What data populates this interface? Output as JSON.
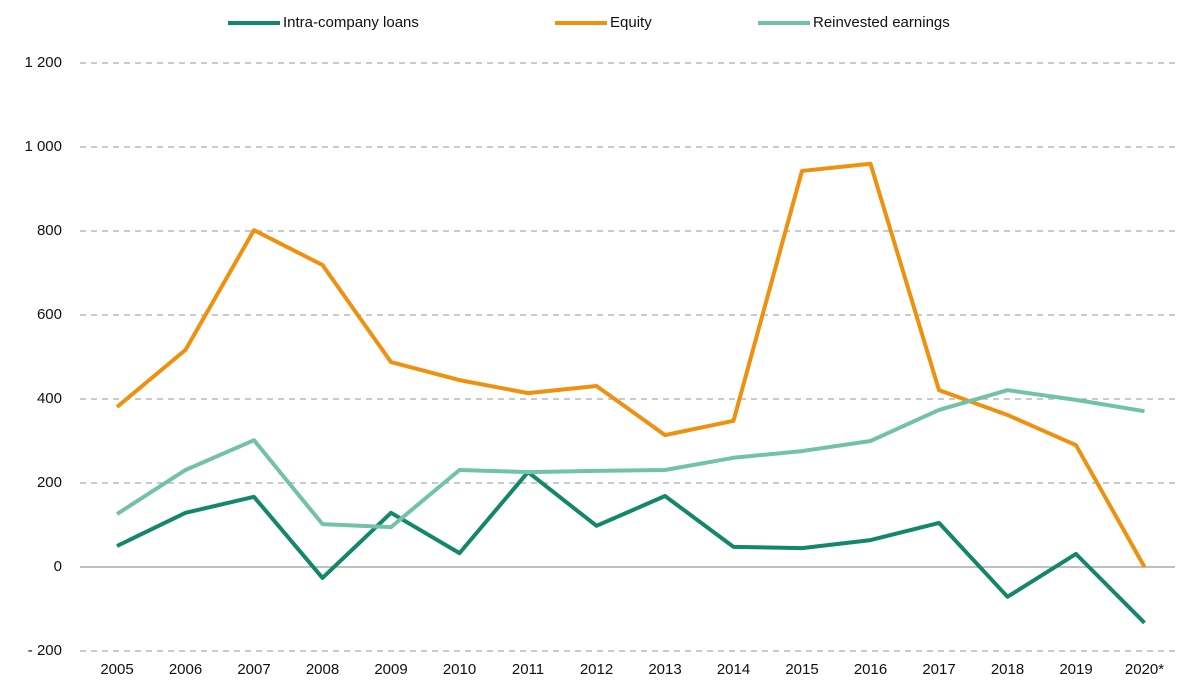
{
  "chart_data": {
    "type": "line",
    "categories": [
      "2005",
      "2006",
      "2007",
      "2008",
      "2009",
      "2010",
      "2011",
      "2012",
      "2013",
      "2014",
      "2015",
      "2016",
      "2017",
      "2018",
      "2019",
      "2020*"
    ],
    "series": [
      {
        "name": "Intra-company loans",
        "color": "#13876b",
        "values": [
          50,
          129,
          167,
          -26,
          129,
          33,
          226,
          98,
          169,
          48,
          45,
          64,
          105,
          -71,
          31,
          -133
        ]
      },
      {
        "name": "Equity",
        "color": "#f0900f",
        "values": [
          381,
          517,
          802,
          719,
          488,
          445,
          414,
          431,
          314,
          348,
          943,
          960,
          421,
          362,
          290,
          0
        ]
      },
      {
        "name": "Reinvested earnings",
        "color": "#72c2aa",
        "values": [
          126,
          231,
          302,
          102,
          95,
          231,
          226,
          229,
          231,
          260,
          276,
          300,
          374,
          421,
          398,
          371
        ]
      }
    ],
    "ylim": [
      -200,
      1200
    ],
    "yticks": [
      {
        "value": -200,
        "label": "- 200"
      },
      0,
      200,
      400,
      600,
      800,
      {
        "value": 1000,
        "label": "1 000"
      },
      {
        "value": 1200,
        "label": "1 200"
      }
    ],
    "grid": true,
    "legend": "top"
  }
}
